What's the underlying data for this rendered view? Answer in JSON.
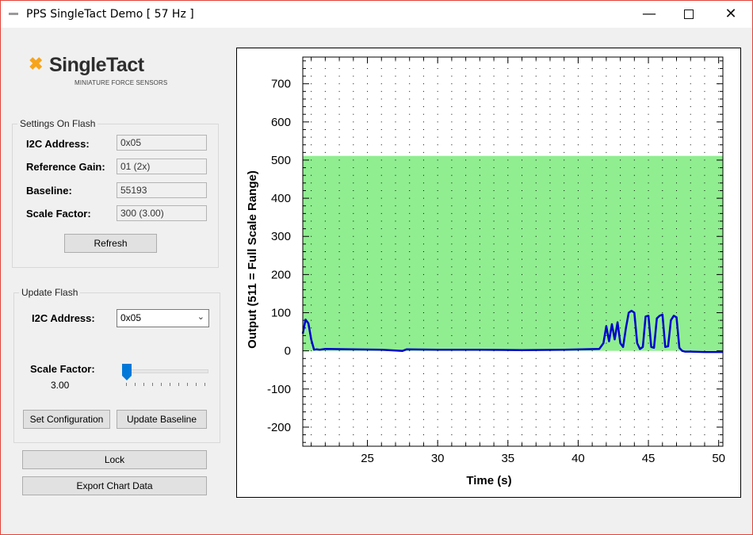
{
  "window": {
    "title": "PPS SingleTact Demo [ 57 Hz ]"
  },
  "logo": {
    "name": "SingleTact",
    "tagline": "MINIATURE FORCE SENSORS"
  },
  "settings": {
    "title": "Settings On Flash",
    "fields": [
      {
        "label": "I2C Address:",
        "value": "0x05"
      },
      {
        "label": "Reference Gain:",
        "value": "01 (2x)"
      },
      {
        "label": "Baseline:",
        "value": "55193"
      },
      {
        "label": "Scale Factor:",
        "value": "300 (3.00)"
      }
    ],
    "refresh_label": "Refresh"
  },
  "update": {
    "title": "Update Flash",
    "i2c_label": "I2C Address:",
    "i2c_value": "0x05",
    "scale_label": "Scale Factor:",
    "scale_value": "3.00",
    "scale_slider_level": 0.0,
    "set_config_label": "Set Configuration",
    "update_baseline_label": "Update Baseline"
  },
  "lock_label": "Lock",
  "export_label": "Export Chart Data",
  "chart_data": {
    "type": "line",
    "xlabel": "Time (s)",
    "ylabel": "Output (511 = Full Scale Range)",
    "xlim": [
      20.4,
      50.3
    ],
    "ylim": [
      -250,
      770
    ],
    "xticks": [
      25,
      30,
      35,
      40,
      45,
      50
    ],
    "yticks": [
      -200,
      -100,
      0,
      100,
      200,
      300,
      400,
      500,
      600,
      700
    ],
    "grid": true,
    "band": {
      "from": 0,
      "to": 511,
      "color": "#90ee90"
    },
    "series": [
      {
        "color": "#0000cc",
        "x": [
          20.4,
          20.6,
          20.8,
          21.0,
          21.2,
          21.4,
          21.6,
          22,
          24,
          26,
          27.5,
          27.8,
          30,
          33,
          36,
          39,
          41.5,
          41.8,
          42.0,
          42.2,
          42.4,
          42.6,
          42.8,
          43.0,
          43.2,
          43.4,
          43.6,
          43.8,
          44.0,
          44.2,
          44.4,
          44.6,
          44.8,
          45.0,
          45.2,
          45.4,
          45.6,
          45.8,
          46.0,
          46.2,
          46.4,
          46.6,
          46.8,
          47.0,
          47.2,
          47.4,
          47.6,
          48,
          49,
          50.3
        ],
        "y": [
          45,
          82,
          72,
          30,
          3,
          4,
          3,
          5,
          4,
          3,
          0,
          4,
          3,
          3,
          2,
          3,
          5,
          20,
          65,
          25,
          70,
          30,
          75,
          20,
          10,
          60,
          100,
          105,
          100,
          20,
          5,
          10,
          90,
          92,
          10,
          8,
          85,
          92,
          95,
          10,
          12,
          80,
          92,
          88,
          8,
          0,
          -2,
          -2,
          -3,
          -3
        ]
      }
    ]
  }
}
